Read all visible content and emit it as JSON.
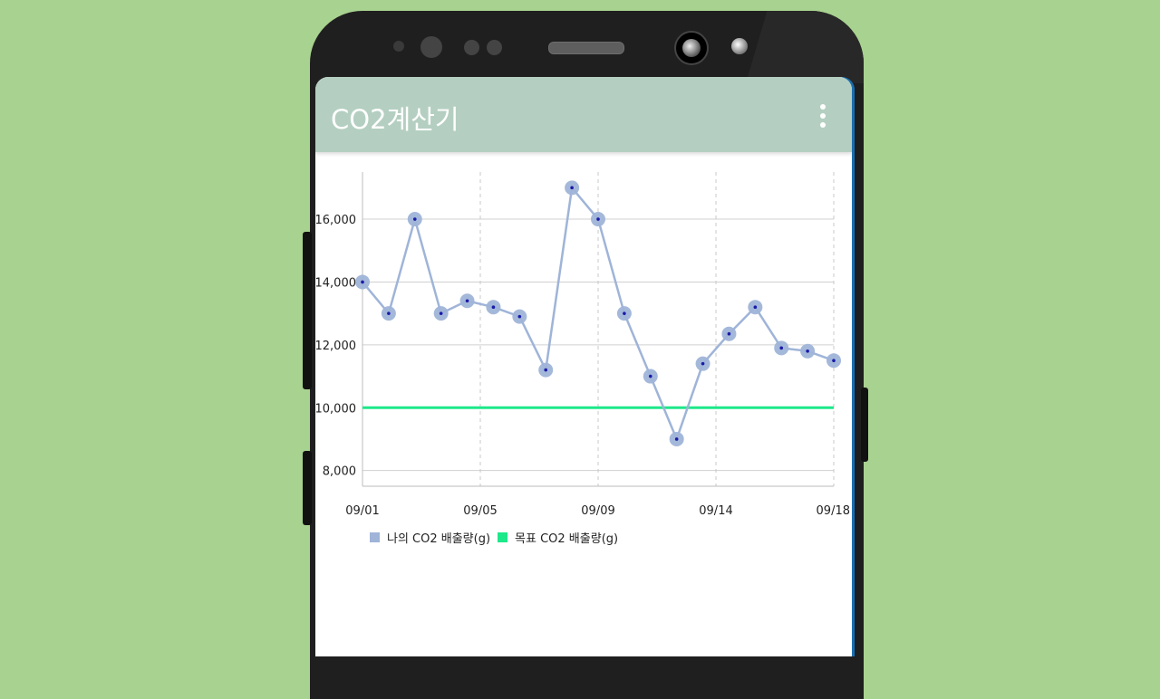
{
  "app": {
    "title": "CO2계산기",
    "menu_icon": "more-vertical-icon"
  },
  "colors": {
    "background": "#a8d28f",
    "appbar": "#b4cfc1",
    "series_mine": "#9fb4d8",
    "series_goal": "#1de88a",
    "point_center": "#1a1aa8"
  },
  "chart_data": {
    "type": "line",
    "title": "",
    "xlabel": "",
    "ylabel": "",
    "ylim": [
      7500,
      17500
    ],
    "yticks": [
      "8,000",
      "10,000",
      "12,000",
      "14,000",
      "16,000"
    ],
    "ytick_values": [
      8000,
      10000,
      12000,
      14000,
      16000
    ],
    "xticks": [
      "09/01",
      "09/05",
      "09/09",
      "09/14",
      "09/18"
    ],
    "xtick_indices": [
      0,
      4.5,
      9,
      13.5,
      18
    ],
    "grid": true,
    "legend_position": "bottom-left",
    "series": [
      {
        "name": "나의 CO2 배출량(g)",
        "values": [
          14000,
          13000,
          16000,
          13000,
          13400,
          13200,
          12900,
          11200,
          17000,
          16000,
          13000,
          11000,
          9000,
          11400,
          12350,
          13200,
          11900,
          11800,
          11500
        ]
      },
      {
        "name": "목표 CO2 배출량(g)",
        "values": [
          10000,
          10000,
          10000,
          10000,
          10000,
          10000,
          10000,
          10000,
          10000,
          10000,
          10000,
          10000,
          10000,
          10000,
          10000,
          10000,
          10000,
          10000,
          10000
        ]
      }
    ]
  }
}
